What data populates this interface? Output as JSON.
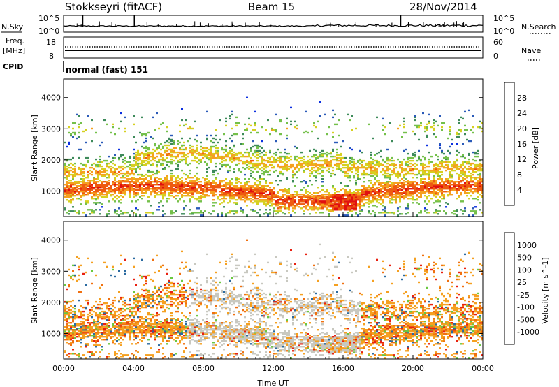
{
  "header": {
    "station": "Stokkseyri (fitACF)",
    "beam": "Beam 15",
    "date": "28/Nov/2014"
  },
  "strips": {
    "nsky_label": "N.Sky",
    "nsky_ticks": [
      "10^5",
      "10^0"
    ],
    "nsearch_label": "N.Search",
    "nsearch_ticks": [
      "10^5",
      "10^0"
    ],
    "freq_label_1": "Freq.",
    "freq_label_2": "[MHz]",
    "freq_ticks": [
      "18",
      "8"
    ],
    "nave_label": "Nave",
    "nave_ticks": [
      "60",
      "0"
    ],
    "cpid_label": "CPID",
    "cpid_value": "normal (fast) 151"
  },
  "chart_data": [
    {
      "type": "heatmap",
      "title": "Power",
      "xlabel": "",
      "ylabel": "Slant Range [km]",
      "x_ticks": [
        "00:00",
        "04:00",
        "08:00",
        "12:00",
        "16:00",
        "20:00",
        "00:00"
      ],
      "xlim_hours": [
        0,
        24
      ],
      "y_ticks": [
        1000,
        2000,
        3000,
        4000
      ],
      "ylim_km": [
        180,
        4600
      ],
      "colorbar_label": "Power [dB]",
      "colorbar_ticks": [
        "4",
        "8",
        "12",
        "16",
        "20",
        "24",
        "28"
      ],
      "colorbar_range": [
        0,
        32
      ],
      "colors": [
        "#0b2fe0",
        "#2a5ab8",
        "#3d8a5a",
        "#74c04a",
        "#d6d020",
        "#f5a020",
        "#ee5a10",
        "#e01010"
      ],
      "main_echo_bands_km": [
        {
          "from_h": 0.0,
          "to_h": 24.0,
          "center_km": 1000,
          "peak_db": 28
        },
        {
          "from_h": 5.0,
          "to_h": 15.0,
          "center_km": 2000,
          "peak_db": 16
        },
        {
          "from_h": 15.5,
          "to_h": 16.8,
          "center_km": 600,
          "peak_db": 28
        }
      ]
    },
    {
      "type": "heatmap",
      "title": "Velocity",
      "xlabel": "Time UT",
      "ylabel": "Slant Range [km]",
      "x_ticks": [
        "00:00",
        "04:00",
        "08:00",
        "12:00",
        "16:00",
        "20:00",
        "00:00"
      ],
      "xlim_hours": [
        0,
        24
      ],
      "y_ticks": [
        1000,
        2000,
        3000,
        4000
      ],
      "ylim_km": [
        180,
        4600
      ],
      "colorbar_label": "Velocity [m s^-1]",
      "colorbar_ticks": [
        "1000",
        "500",
        "100",
        "25",
        "-25",
        "-100",
        "-500",
        "-1000"
      ],
      "colors": [
        "#1030c8",
        "#2a6aa0",
        "#3c9a50",
        "#6ac840",
        "#c0c0b8",
        "#f5a020",
        "#f07010",
        "#e82010",
        "#d00000"
      ],
      "ground_scatter_color": "#c8c8c0"
    }
  ]
}
